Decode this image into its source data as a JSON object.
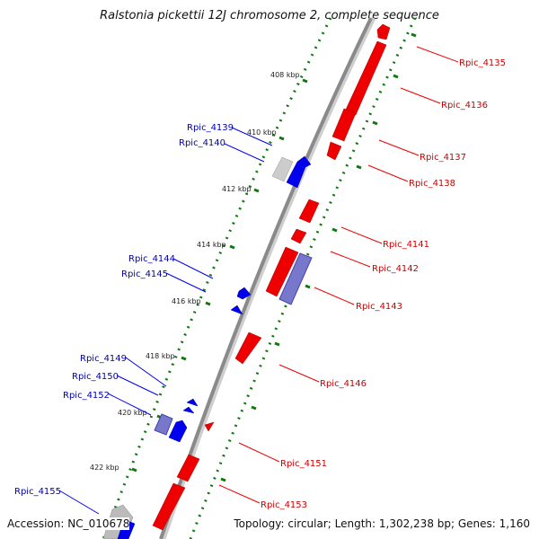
{
  "title": "Ralstonia pickettii 12J chromosome 2, complete sequence",
  "accession_text": "Accession: NC_010678",
  "topology_text": "Topology: circular; Length: 1,302,238 bp; Genes: 1,160",
  "colors": {
    "forward": "#ee0000",
    "reverse": "#0000ee",
    "backbone": "#888888",
    "ticks": "#117711"
  },
  "kbp_ticks": [
    "408 kbp",
    "410 kbp",
    "412 kbp",
    "414 kbp",
    "416 kbp",
    "418 kbp",
    "420 kbp",
    "422 kbp"
  ],
  "genes_forward": [
    {
      "label": "Rpic_4135"
    },
    {
      "label": "Rpic_4136"
    },
    {
      "label": "Rpic_4137"
    },
    {
      "label": "Rpic_4138"
    },
    {
      "label": "Rpic_4141"
    },
    {
      "label": "Rpic_4142"
    },
    {
      "label": "Rpic_4143"
    },
    {
      "label": "Rpic_4146"
    },
    {
      "label": "Rpic_4151"
    },
    {
      "label": "Rpic_4153"
    }
  ],
  "genes_reverse": [
    {
      "label": "Rpic_4139"
    },
    {
      "label": "Rpic_4140"
    },
    {
      "label": "Rpic_4144"
    },
    {
      "label": "Rpic_4145"
    },
    {
      "label": "Rpic_4149"
    },
    {
      "label": "Rpic_4150"
    },
    {
      "label": "Rpic_4152"
    },
    {
      "label": "Rpic_4155"
    }
  ]
}
